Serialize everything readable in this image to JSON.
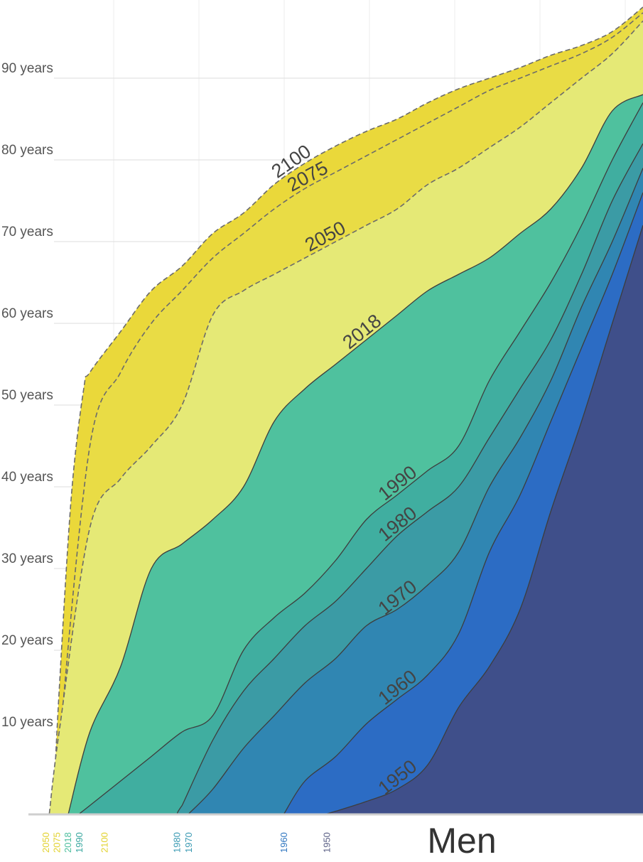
{
  "chart_data": {
    "type": "area",
    "title": "Men",
    "ylim": [
      0,
      99
    ],
    "xlim": [
      0,
      100
    ],
    "yticks": [
      {
        "value": 10,
        "label": "10 years"
      },
      {
        "value": 20,
        "label": "20 years"
      },
      {
        "value": 30,
        "label": "30 years"
      },
      {
        "value": 40,
        "label": "40 years"
      },
      {
        "value": 50,
        "label": "50 years"
      },
      {
        "value": 60,
        "label": "60 years"
      },
      {
        "value": 70,
        "label": "70 years"
      },
      {
        "value": 80,
        "label": "80 years"
      },
      {
        "value": 90,
        "label": "90 years"
      }
    ],
    "xticks": [
      {
        "value": 2.9,
        "label": "2050"
      },
      {
        "value": 4.7,
        "label": "2075"
      },
      {
        "value": 6.5,
        "label": "2018"
      },
      {
        "value": 8.3,
        "label": "1990"
      },
      {
        "value": 12.4,
        "label": "2100"
      },
      {
        "value": 24.2,
        "label": "1980"
      },
      {
        "value": 26.1,
        "label": "1970"
      },
      {
        "value": 41.6,
        "label": "1960"
      },
      {
        "value": 48.6,
        "label": "1950"
      }
    ],
    "xtick_colors": [
      "#e2d22e",
      "#e2d22e",
      "#4dbf9e",
      "#3aa8a0",
      "#e2d22e",
      "#3a9ab3",
      "#3a9ab3",
      "#2f76c0",
      "#5a5f85"
    ],
    "grid": true,
    "series": [
      {
        "name": "2100",
        "color": "#ead83a",
        "dashed": true,
        "x": [
          4,
          5,
          7,
          9,
          10,
          15,
          20,
          25,
          30,
          35,
          40,
          45,
          50,
          55,
          60,
          65,
          70,
          75,
          80,
          85,
          90,
          95,
          100
        ],
        "values": [
          0,
          15,
          39,
          52,
          54,
          59,
          64,
          67,
          71,
          73.5,
          77,
          79.6,
          81.7,
          83.5,
          85,
          87,
          88.7,
          90,
          91.3,
          92.8,
          94,
          95.7,
          98.7
        ]
      },
      {
        "name": "2075",
        "color": "#e9dc45",
        "dashed": true,
        "x": [
          4.6,
          5,
          10,
          15,
          20,
          25,
          30,
          35,
          40,
          45,
          50,
          55,
          60,
          65,
          70,
          75,
          80,
          85,
          90,
          95,
          100
        ],
        "values": [
          0,
          8,
          45,
          54,
          60,
          64,
          68,
          71,
          74,
          76.5,
          78.5,
          80.5,
          82.5,
          84.5,
          86.5,
          88.5,
          90,
          91.5,
          93,
          95,
          98
        ]
      },
      {
        "name": "2050",
        "color": "#e5e976",
        "dashed": true,
        "x": [
          3.4,
          5,
          10,
          15,
          20,
          25,
          30,
          35,
          40,
          45,
          50,
          55,
          60,
          65,
          70,
          75,
          80,
          85,
          90,
          95,
          100
        ],
        "values": [
          0,
          10,
          35,
          41,
          45,
          50,
          61,
          64,
          66,
          68,
          70,
          72,
          74,
          77,
          79,
          81.5,
          84,
          87,
          90,
          93,
          97
        ]
      },
      {
        "name": "2018",
        "color": "#4fc19e",
        "dashed": false,
        "x": [
          6.5,
          10,
          15,
          20,
          25,
          30,
          35,
          40,
          45,
          50,
          55,
          60,
          65,
          70,
          75,
          80,
          85,
          90,
          95,
          100
        ],
        "values": [
          0,
          10,
          18,
          30,
          33,
          36,
          40,
          48,
          52,
          55,
          58,
          61,
          64,
          66,
          68,
          71,
          74,
          79,
          86,
          88
        ]
      },
      {
        "name": "1990",
        "color": "#40aea0",
        "dashed": false,
        "x": [
          8.3,
          10,
          15,
          20,
          25,
          30,
          35,
          40,
          45,
          50,
          55,
          60,
          65,
          70,
          75,
          80,
          85,
          90,
          95,
          100
        ],
        "values": [
          0,
          1,
          4,
          7,
          10,
          12,
          20,
          24,
          27,
          31,
          36,
          39,
          42,
          45,
          53,
          59,
          65,
          72,
          80,
          87
        ]
      },
      {
        "name": "1980",
        "color": "#3b9ba5",
        "dashed": false,
        "x": [
          24.2,
          25,
          30,
          35,
          40,
          45,
          50,
          55,
          60,
          65,
          70,
          75,
          80,
          85,
          90,
          95,
          100
        ],
        "values": [
          0,
          1,
          9,
          15,
          19,
          23,
          26,
          30,
          34,
          37,
          40,
          46,
          52,
          58,
          66,
          75,
          82
        ]
      },
      {
        "name": "1970",
        "color": "#3086b2",
        "dashed": false,
        "x": [
          26.1,
          30,
          35,
          40,
          45,
          50,
          55,
          60,
          65,
          70,
          75,
          80,
          85,
          90,
          95,
          100
        ],
        "values": [
          0,
          3,
          8,
          12,
          16,
          19,
          23,
          25,
          28,
          32,
          40,
          46,
          53,
          62,
          70,
          79
        ]
      },
      {
        "name": "1960",
        "color": "#2c6cc4",
        "dashed": false,
        "x": [
          41.6,
          45,
          50,
          55,
          60,
          65,
          70,
          75,
          80,
          85,
          90,
          95,
          100
        ],
        "values": [
          0,
          4,
          7,
          11,
          14,
          17,
          22,
          32,
          39,
          48,
          57,
          66,
          76
        ]
      },
      {
        "name": "1950",
        "color": "#3f4f8a",
        "dashed": false,
        "x": [
          48.6,
          50,
          55,
          60,
          65,
          70,
          75,
          80,
          85,
          90,
          95,
          100
        ],
        "values": [
          0,
          0.3,
          1.5,
          3,
          6,
          13,
          18,
          25,
          37,
          48,
          60,
          72
        ]
      }
    ]
  }
}
